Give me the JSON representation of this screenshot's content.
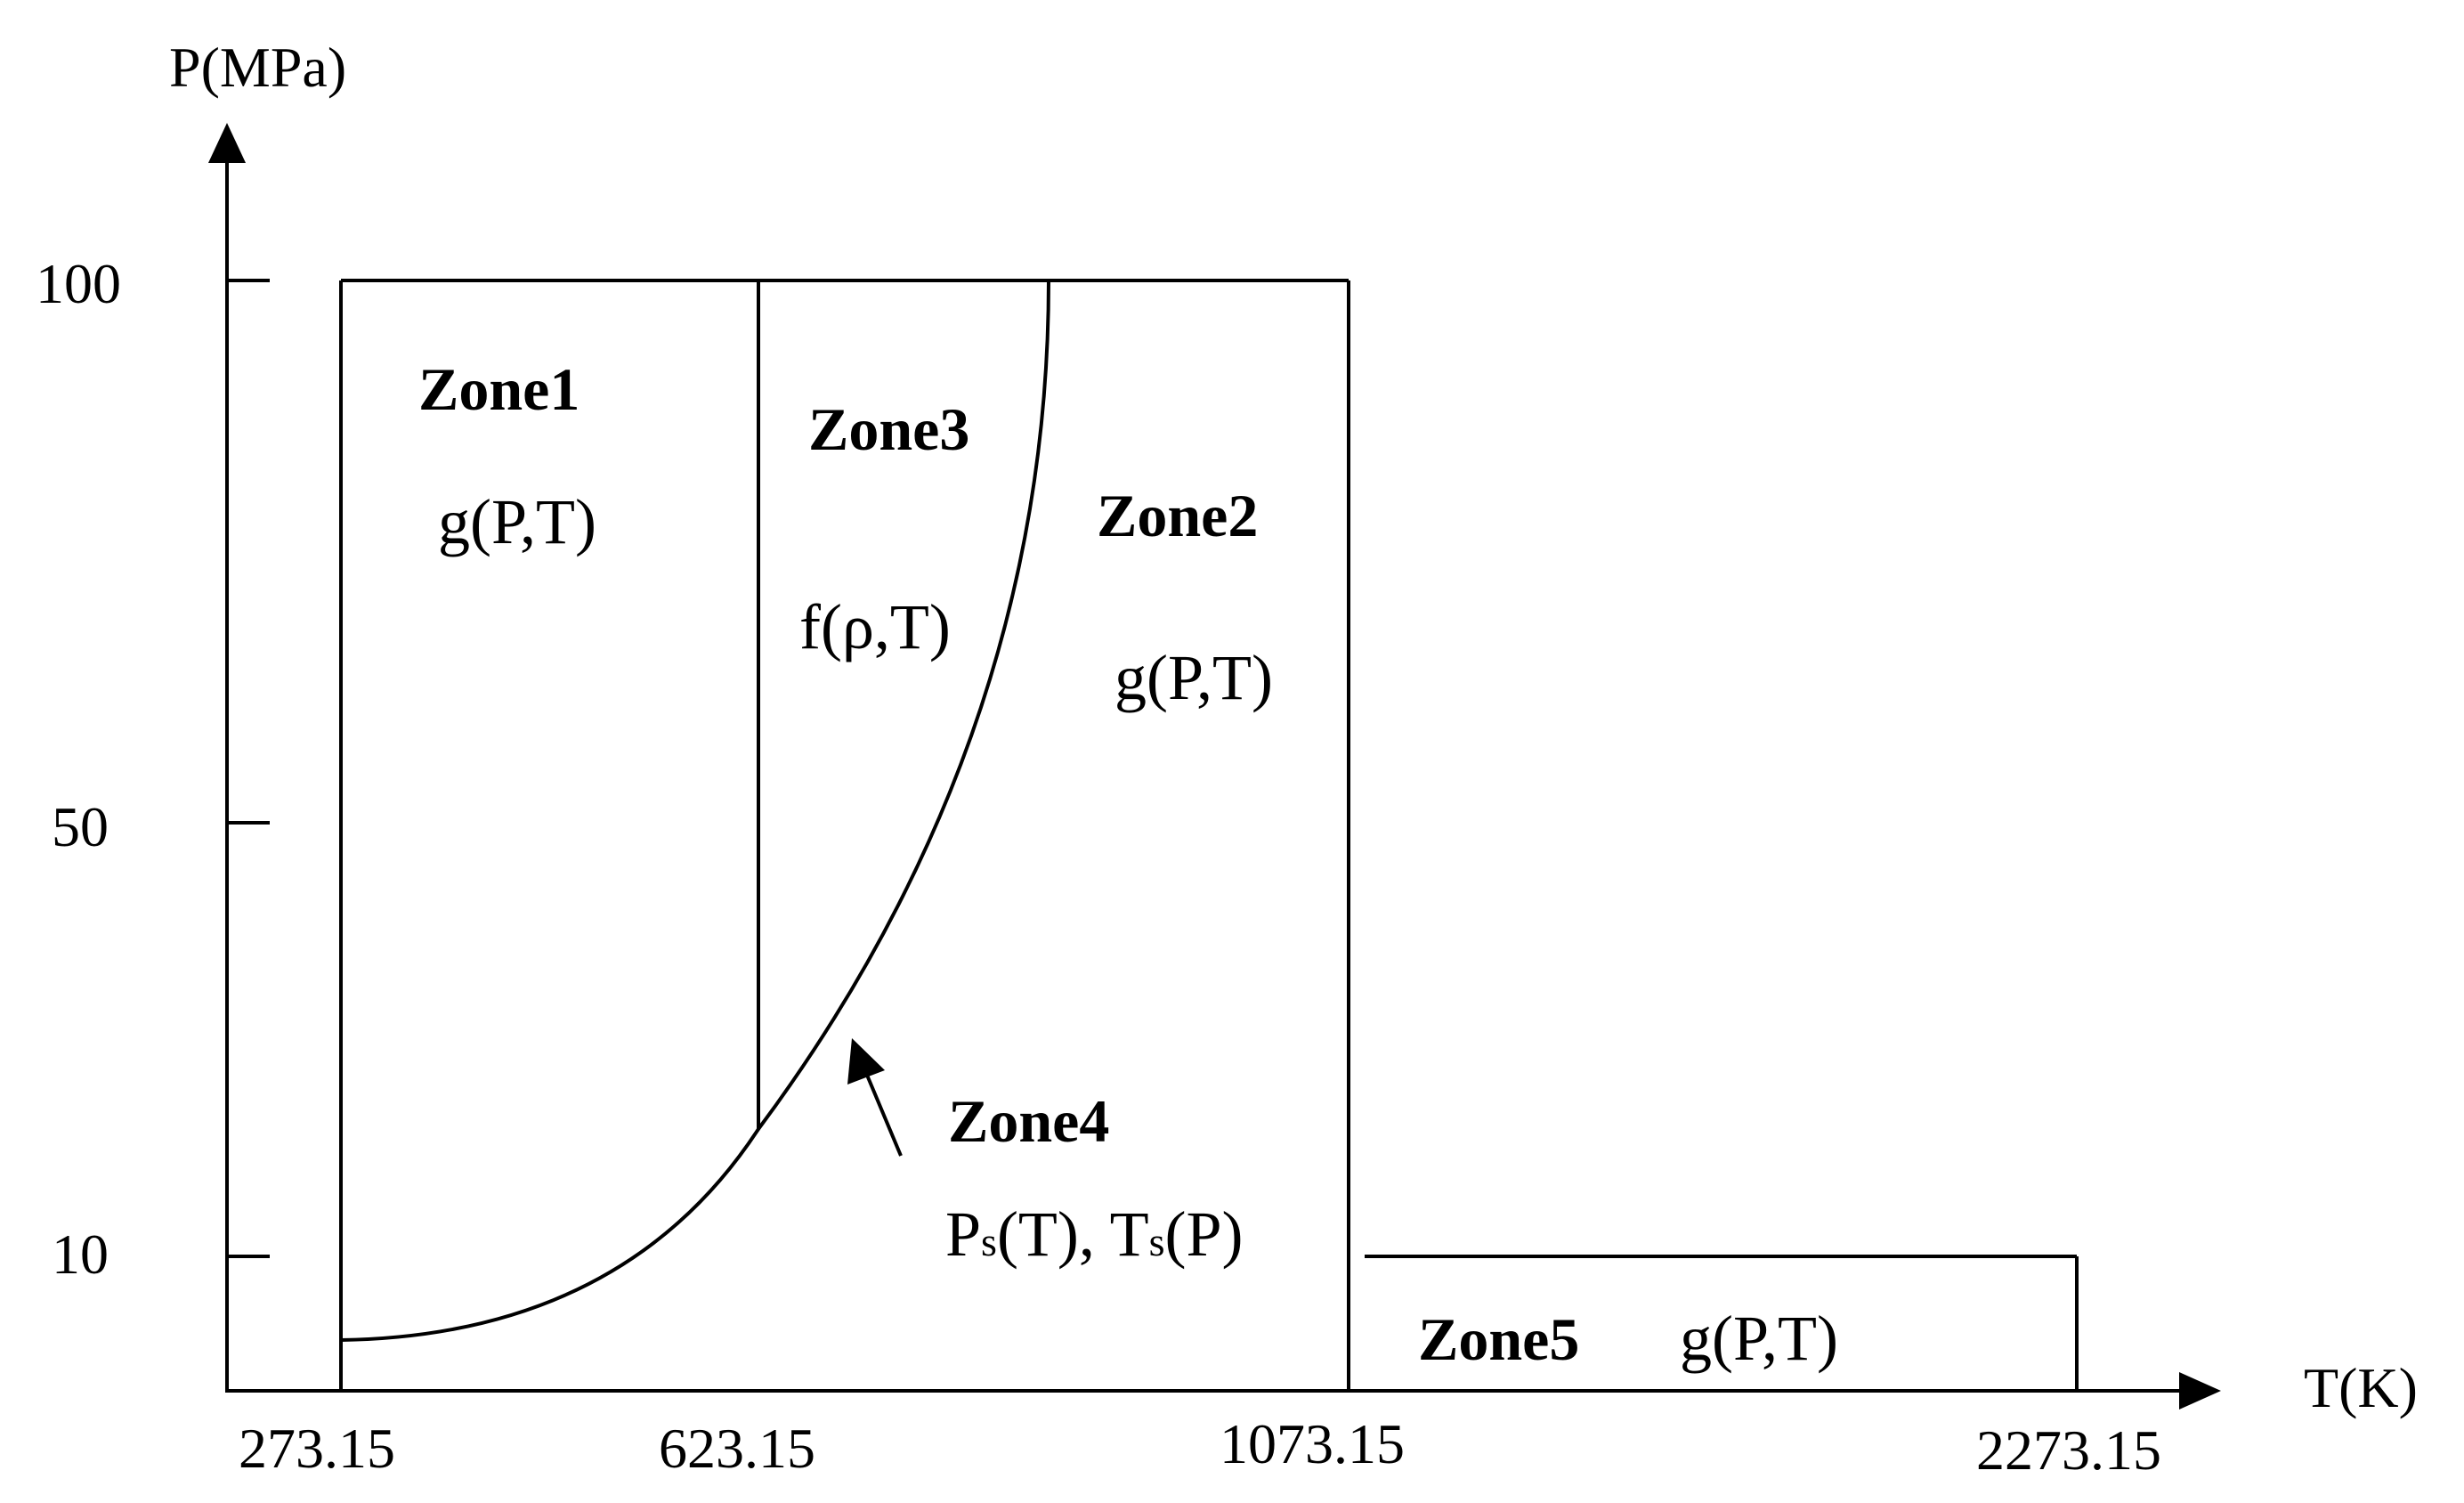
{
  "axes": {
    "y_label": "P(MPa)",
    "x_label": "T(K)",
    "y_ticks": [
      "100",
      "50",
      "10"
    ],
    "x_ticks": [
      "273.15",
      "623.15",
      "1073.15",
      "2273.15"
    ]
  },
  "zones": [
    {
      "name": "Zone1",
      "formula": "g(P,T)"
    },
    {
      "name": "Zone3",
      "formula": "f(ρ,T)"
    },
    {
      "name": "Zone2",
      "formula": "g(P,T)"
    },
    {
      "name": "Zone4",
      "formula_ps": "P",
      "formula_ps_sub": "s",
      "formula_ps_arg": "(T), ",
      "formula_ts": "T",
      "formula_ts_sub": "s",
      "formula_ts_arg": "(P)"
    },
    {
      "name": "Zone5",
      "formula": "g(P,T)"
    }
  ]
}
